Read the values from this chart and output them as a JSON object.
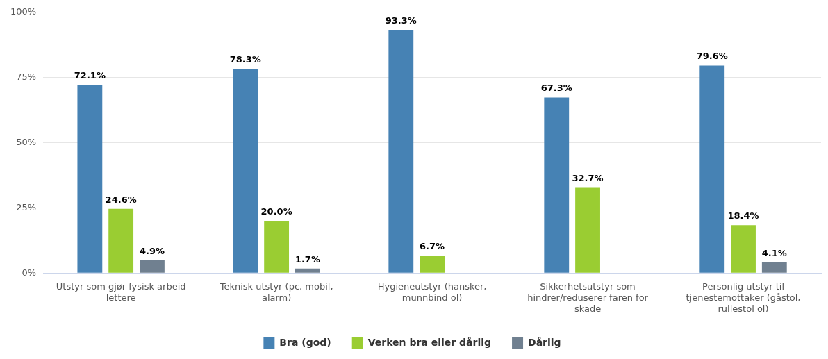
{
  "chart_data": {
    "type": "bar",
    "categories": [
      "Utstyr som gjør fysisk arbeid lettere",
      "Teknisk utstyr (pc, mobil, alarm)",
      "Hygieneutstyr (hansker, munnbind ol)",
      "Sikkerhetsutstyr som hindrer/reduserer faren for skade",
      "Personlig utstyr til tjenestemottaker (gåstol, rullestol ol)"
    ],
    "series": [
      {
        "name": "Bra (god)",
        "color": "#4682b4",
        "values": [
          72.1,
          78.3,
          93.3,
          67.3,
          79.6
        ],
        "value_labels": [
          "72.1%",
          "78.3%",
          "93.3%",
          "67.3%",
          "79.6%"
        ]
      },
      {
        "name": "Verken bra eller dårlig",
        "color": "#9acd32",
        "values": [
          24.6,
          20.0,
          6.7,
          32.7,
          18.4
        ],
        "value_labels": [
          "24.6%",
          "20.0%",
          "6.7%",
          "32.7%",
          "18.4%"
        ]
      },
      {
        "name": "Dårlig",
        "color": "#708090",
        "values": [
          4.9,
          1.7,
          null,
          null,
          4.1
        ],
        "value_labels": [
          "4.9%",
          "1.7%",
          null,
          null,
          "4.1%"
        ]
      }
    ],
    "ylim": [
      0,
      100
    ],
    "yticks": [
      {
        "value": 0,
        "label": "0%"
      },
      {
        "value": 25,
        "label": "25%"
      },
      {
        "value": 50,
        "label": "50%"
      },
      {
        "value": 75,
        "label": "75%"
      },
      {
        "value": 100,
        "label": "100%"
      }
    ],
    "grid": "y",
    "legend": "bottom"
  }
}
